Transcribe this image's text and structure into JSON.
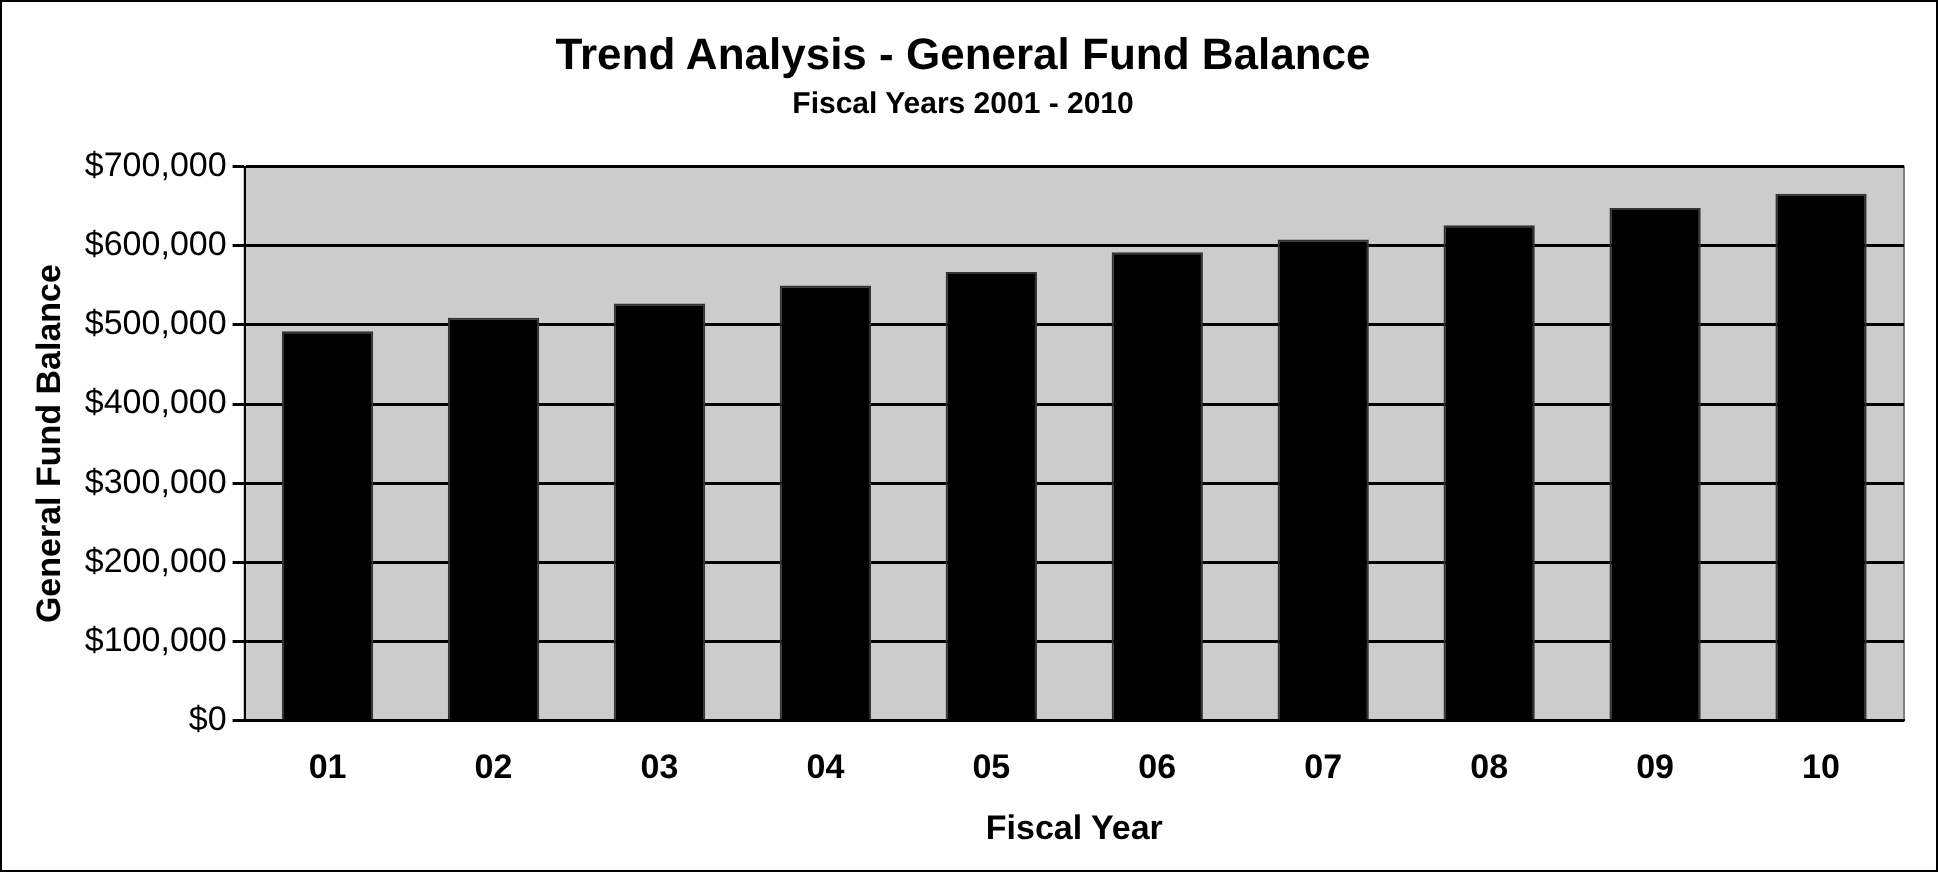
{
  "chart_data": {
    "type": "bar",
    "title": "Trend Analysis - General Fund Balance",
    "subtitle": "Fiscal Years 2001 - 2010",
    "xlabel": "Fiscal Year",
    "ylabel": "General Fund Balance",
    "categories": [
      "01",
      "02",
      "03",
      "04",
      "05",
      "06",
      "07",
      "08",
      "09",
      "10"
    ],
    "values": [
      492000,
      509000,
      527000,
      550000,
      567000,
      592000,
      608000,
      626000,
      648000,
      666000
    ],
    "color": "#000000",
    "ylim": [
      0,
      700000
    ],
    "yticks": [
      {
        "value": 0,
        "label": "$0"
      },
      {
        "value": 100000,
        "label": "$100,000"
      },
      {
        "value": 200000,
        "label": "$200,000"
      },
      {
        "value": 300000,
        "label": "$300,000"
      },
      {
        "value": 400000,
        "label": "$400,000"
      },
      {
        "value": 500000,
        "label": "$500,000"
      },
      {
        "value": 600000,
        "label": "$600,000"
      },
      {
        "value": 700000,
        "label": "$700,000"
      }
    ],
    "grid": "y",
    "legend": false
  }
}
